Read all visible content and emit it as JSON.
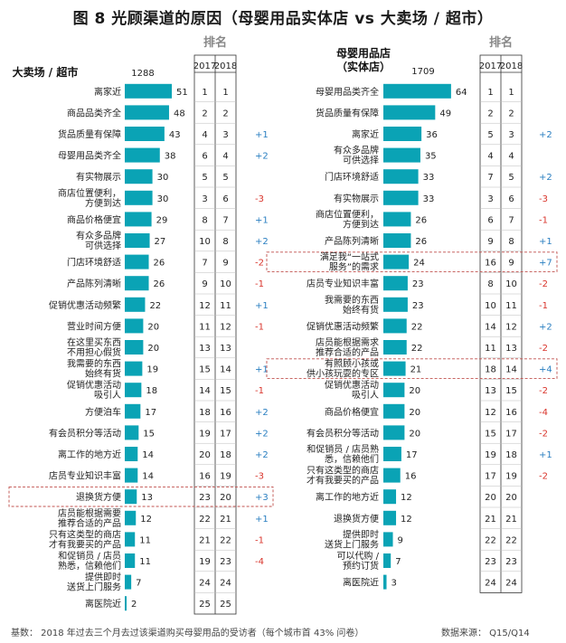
{
  "title": "图 8  光顾渠道的原因（母婴用品实体店 vs 大卖场 / 超市）",
  "footer": {
    "basis": "基数：  2018 年过去三个月去过该渠道购买母婴用品的受访者（每个城市首 43% 问卷）",
    "source": "数据来源：  Q15/Q14"
  },
  "colors": {
    "bar": "#0aa3b5",
    "up": "#2a7fc1",
    "down": "#d9342b",
    "highlight": "#c0504d"
  },
  "chart_data": [
    {
      "type": "bar",
      "title": "大卖场 / 超市",
      "base": "1288",
      "rank_header": "排名",
      "year_headers": [
        "2017",
        "2018"
      ],
      "categories": [
        "离家近",
        "商品品类齐全",
        "货品质量有保障",
        "母婴用品类齐全",
        "有实物展示",
        "商店位置便利，方便到达",
        "商品价格便宜",
        "有众多品牌可供选择",
        "门店环境舒适",
        "产品陈列清晰",
        "促销优惠活动频繁",
        "营业时间方便",
        "在这里买东西不用担心假货",
        "我需要的东西始终有货",
        "促销优惠活动吸引人",
        "方便泊车",
        "有会员积分等活动",
        "离工作的地方近",
        "店员专业知识丰富",
        "退换货方便",
        "店员能根据需要推荐合适的产品",
        "只有这类型的商店才有我要买的产品",
        "和促销员 / 店员熟悉，信赖他们",
        "提供即时送货上门服务",
        "离医院近"
      ],
      "labels": [
        [
          "离家近"
        ],
        [
          "商品品类齐全"
        ],
        [
          "货品质量有保障"
        ],
        [
          "母婴用品类齐全"
        ],
        [
          "有实物展示"
        ],
        [
          "商店位置便利，",
          "方便到达"
        ],
        [
          "商品价格便宜"
        ],
        [
          "有众多品牌",
          "可供选择"
        ],
        [
          "门店环境舒适"
        ],
        [
          "产品陈列清晰"
        ],
        [
          "促销优惠活动频繁"
        ],
        [
          "营业时间方便"
        ],
        [
          "在这里买东西",
          "不用担心假货"
        ],
        [
          "我需要的东西",
          "始终有货"
        ],
        [
          "促销优惠活动",
          "吸引人"
        ],
        [
          "方便泊车"
        ],
        [
          "有会员积分等活动"
        ],
        [
          "离工作的地方近"
        ],
        [
          "店员专业知识丰富"
        ],
        [
          "退换货方便"
        ],
        [
          "店员能根据需要",
          "推荐合适的产品"
        ],
        [
          "只有这类型的商店",
          "才有我要买的产品"
        ],
        [
          "和促销员 / 店员",
          "熟悉，信赖他们"
        ],
        [
          "提供即时",
          "送货上门服务"
        ],
        [
          "离医院近"
        ]
      ],
      "values": [
        51,
        48,
        43,
        38,
        30,
        30,
        29,
        27,
        26,
        26,
        22,
        20,
        20,
        19,
        18,
        17,
        15,
        14,
        14,
        13,
        12,
        11,
        11,
        7,
        2
      ],
      "rank_2017": [
        "1",
        "2",
        "4",
        "6",
        "5",
        "3",
        "8",
        "10",
        "7",
        "9",
        "12",
        "11",
        "13",
        "15",
        "14",
        "18",
        "19",
        "20",
        "16",
        "23",
        "22",
        "21",
        "19",
        "24",
        "25"
      ],
      "rank_2018": [
        "1",
        "2",
        "3",
        "4",
        "5",
        "6",
        "7",
        "8",
        "9",
        "10",
        "11",
        "12",
        "13",
        "14",
        "15",
        "16",
        "17",
        "18",
        "19",
        "20",
        "21",
        "22",
        "23",
        "24",
        "25"
      ],
      "change": [
        "",
        "",
        "+1",
        "+2",
        "",
        "-3",
        "+1",
        "+2",
        "-2",
        "-1",
        "+1",
        "-1",
        "",
        "+1",
        "-1",
        "+2",
        "+2",
        "+2",
        "-3",
        "+3",
        "+1",
        "-1",
        "-4",
        "",
        ""
      ],
      "highlight_rows": [
        19
      ]
    },
    {
      "type": "bar",
      "title": "母婴用品店（实体店）",
      "title_lines": [
        "母婴用品店",
        "（实体店）"
      ],
      "base": "1709",
      "rank_header": "排名",
      "year_headers": [
        "2017",
        "2018"
      ],
      "categories": [
        "母婴用品类齐全",
        "货品质量有保障",
        "离家近",
        "有众多品牌可供选择",
        "门店环境舒适",
        "有实物展示",
        "商店位置便利，方便到达",
        "产品陈列清晰",
        "满足我“一站式服务”的需求",
        "店员专业知识丰富",
        "我需要的东西始终有货",
        "促销优惠活动频繁",
        "店员能根据需求推荐合适的产品",
        "有照顾小孩或供小孩玩耍的专区",
        "促销优惠活动吸引人",
        "商品价格便宜",
        "有会员积分等活动",
        "和促销员 / 店员熟悉，信赖他们",
        "只有这类型的商店才有我要买的产品",
        "离工作的地方近",
        "退换货方便",
        "提供即时送货上门服务",
        "可以代购 / 预约订货",
        "离医院近"
      ],
      "labels": [
        [
          "母婴用品类齐全"
        ],
        [
          "货品质量有保障"
        ],
        [
          "离家近"
        ],
        [
          "有众多品牌",
          "可供选择"
        ],
        [
          "门店环境舒适"
        ],
        [
          "有实物展示"
        ],
        [
          "商店位置便利，",
          "方便到达"
        ],
        [
          "产品陈列清晰"
        ],
        [
          "满足我“一站式",
          "服务”的需求"
        ],
        [
          "店员专业知识丰富"
        ],
        [
          "我需要的东西",
          "始终有货"
        ],
        [
          "促销优惠活动频繁"
        ],
        [
          "店员能根据需求",
          "推荐合适的产品"
        ],
        [
          "有照顾小孩或",
          "供小孩玩耍的专区"
        ],
        [
          "促销优惠活动",
          "吸引人"
        ],
        [
          "商品价格便宜"
        ],
        [
          "有会员积分等活动"
        ],
        [
          "和促销员 / 店员熟",
          "悉，信赖他们"
        ],
        [
          "只有这类型的商店",
          "才有我要买的产品"
        ],
        [
          "离工作的地方近"
        ],
        [
          "退换货方便"
        ],
        [
          "提供即时",
          "送货上门服务"
        ],
        [
          "可以代购 /",
          "预约订货"
        ],
        [
          "离医院近"
        ]
      ],
      "values": [
        64,
        49,
        36,
        35,
        33,
        33,
        26,
        26,
        24,
        23,
        23,
        22,
        22,
        21,
        20,
        20,
        20,
        17,
        16,
        12,
        12,
        9,
        7,
        3
      ],
      "rank_2017": [
        "1",
        "2",
        "5",
        "4",
        "7",
        "3",
        "6",
        "9",
        "16",
        "8",
        "10",
        "14",
        "11",
        "18",
        "13",
        "12",
        "15",
        "19",
        "17",
        "20",
        "21",
        "22",
        "23",
        "24"
      ],
      "rank_2018": [
        "1",
        "2",
        "3",
        "4",
        "5",
        "6",
        "7",
        "8",
        "9",
        "10",
        "11",
        "12",
        "13",
        "14",
        "15",
        "16",
        "17",
        "18",
        "19",
        "20",
        "21",
        "22",
        "23",
        "24"
      ],
      "change": [
        "",
        "",
        "+2",
        "",
        "+2",
        "-3",
        "-1",
        "+1",
        "+7",
        "-2",
        "-1",
        "+2",
        "-2",
        "+4",
        "-2",
        "-4",
        "-2",
        "+1",
        "-2",
        "",
        "",
        "",
        "",
        ""
      ],
      "highlight_rows": [
        8,
        13
      ]
    }
  ]
}
